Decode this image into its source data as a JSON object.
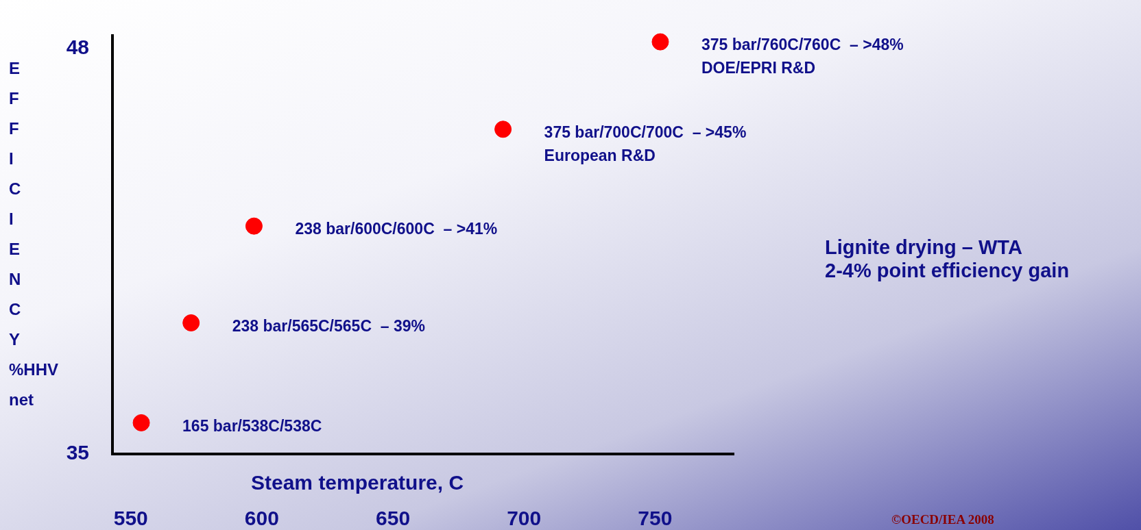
{
  "chart_data": {
    "type": "scatter",
    "x": [
      554,
      573,
      597,
      692,
      752
    ],
    "values": [
      36.0,
      39.2,
      42.3,
      45.4,
      48.2
    ],
    "color": "#ff0000",
    "marker": "circle",
    "grid": false,
    "xlim": [
      543,
      780
    ],
    "ylim": [
      35,
      48.4
    ],
    "xticks": [
      550,
      600,
      650,
      700,
      750
    ],
    "yticks": [
      35,
      48
    ],
    "xlabel": "Steam temperature, C",
    "ylabel": "EFFICIENCY %HHV net",
    "annotations": [
      {
        "text": "165 bar/538C/538C",
        "x": 554,
        "y": 36.0
      },
      {
        "text": "238 bar/565C/565C  – 39%",
        "x": 573,
        "y": 39.2
      },
      {
        "text": "238 bar/600C/600C  – >41%",
        "x": 597,
        "y": 42.3
      },
      {
        "text": "375 bar/700C/700C  – >45%\nEuropean R&D",
        "x": 692,
        "y": 45.4
      },
      {
        "text": "375 bar/760C/760C  – >48%\nDOE/EPRI R&D",
        "x": 752,
        "y": 48.2
      },
      "Lignite drying – WTA\n2-4% point efficiency gain",
      "©OECD/IEA 2008"
    ]
  }
}
